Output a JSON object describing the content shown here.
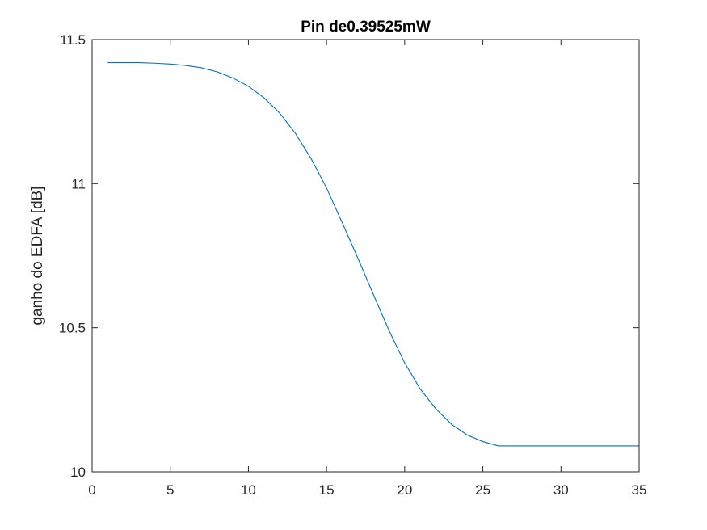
{
  "chart_data": {
    "type": "line",
    "title": "Pin de0.39525mW",
    "xlabel": "",
    "ylabel": "ganho do EDFA [dB]",
    "xlim": [
      0,
      35
    ],
    "ylim": [
      10,
      11.5
    ],
    "xticks": [
      0,
      5,
      10,
      15,
      20,
      25,
      30,
      35
    ],
    "yticks": [
      10,
      10.5,
      11,
      11.5
    ],
    "xtick_labels": [
      "0",
      "5",
      "10",
      "15",
      "20",
      "25",
      "30",
      "35"
    ],
    "ytick_labels": [
      "10",
      "10.5",
      "11",
      "11.5"
    ],
    "grid": false,
    "series": [
      {
        "color": "#0072bd",
        "x": [
          1,
          2,
          3,
          4,
          5,
          6,
          7,
          8,
          9,
          10,
          11,
          12,
          13,
          14,
          15,
          16,
          17,
          18,
          19,
          20,
          21,
          22,
          23,
          24,
          25,
          26,
          27,
          28,
          29,
          30,
          31,
          32,
          33,
          34,
          35
        ],
        "y": [
          11.42,
          11.42,
          11.42,
          11.418,
          11.415,
          11.41,
          11.402,
          11.388,
          11.367,
          11.338,
          11.298,
          11.245,
          11.175,
          11.088,
          10.985,
          10.865,
          10.742,
          10.615,
          10.49,
          10.378,
          10.287,
          10.218,
          10.165,
          10.128,
          10.105,
          10.09,
          10.09,
          10.09,
          10.09,
          10.09,
          10.09,
          10.09,
          10.09,
          10.09,
          10.09
        ]
      }
    ]
  }
}
